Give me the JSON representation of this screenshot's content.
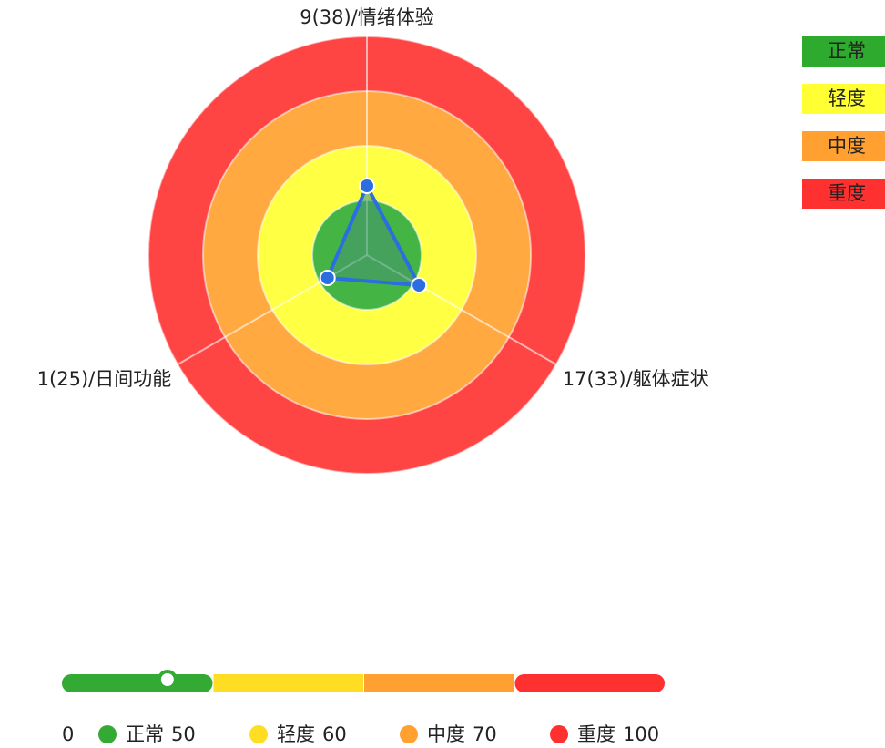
{
  "chart_data": {
    "type": "radar",
    "rlim": [
      0,
      120
    ],
    "axes": [
      {
        "label": "9(38)/情绪体验",
        "value": 38
      },
      {
        "label": "17(33)/躯体症状",
        "value": 33
      },
      {
        "label": "1(25)/日间功能",
        "value": 25
      }
    ],
    "rings": [
      {
        "name": "正常",
        "limit": 30,
        "color": "#44b544"
      },
      {
        "name": "轻度",
        "limit": 60,
        "color": "#ffff44"
      },
      {
        "name": "中度",
        "limit": 90,
        "color": "#ffa940"
      },
      {
        "name": "重度",
        "limit": 120,
        "color": "#ff4444"
      }
    ],
    "legend": [
      {
        "name": "正常",
        "color": "#2eaa2e"
      },
      {
        "name": "轻度",
        "color": "#ffff33"
      },
      {
        "name": "中度",
        "color": "#ffa030"
      },
      {
        "name": "重度",
        "color": "#ff3030"
      }
    ],
    "scale": {
      "start": 0,
      "marker": 35,
      "segments": [
        {
          "name": "正常",
          "value": 50,
          "color": "#33aa33"
        },
        {
          "name": "轻度",
          "value": 60,
          "color": "#ffdd22"
        },
        {
          "name": "中度",
          "value": 70,
          "color": "#ffa030"
        },
        {
          "name": "重度",
          "value": 100,
          "color": "#ff3030"
        }
      ]
    }
  }
}
